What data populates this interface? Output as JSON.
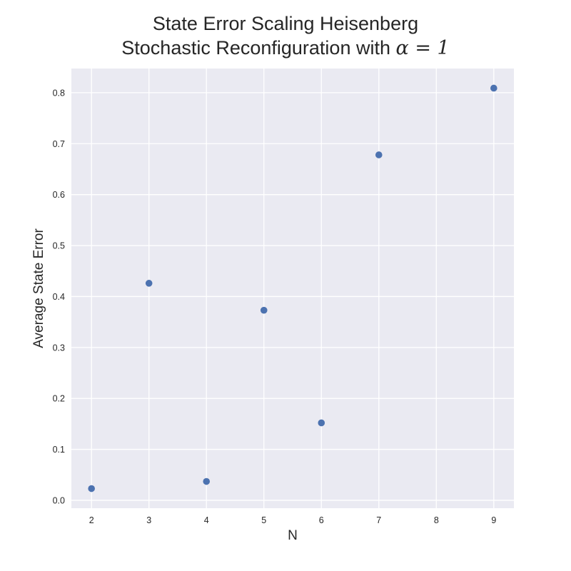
{
  "chart_data": {
    "type": "scatter",
    "title_lines": [
      "State Error Scaling Heisenberg",
      "Stochastic Reconfiguration with"
    ],
    "title_math": "α = 1",
    "xlabel": "N",
    "ylabel": "Average State Error",
    "x": [
      2,
      3,
      4,
      5,
      6,
      7,
      9
    ],
    "y": [
      0.023,
      0.426,
      0.037,
      0.373,
      0.152,
      0.678,
      0.809
    ],
    "xticks": [
      2,
      3,
      4,
      5,
      6,
      7,
      8,
      9
    ],
    "yticks": [
      0.0,
      0.1,
      0.2,
      0.3,
      0.4,
      0.5,
      0.6,
      0.7,
      0.8
    ],
    "ytick_labels": [
      "0.0",
      "0.1",
      "0.2",
      "0.3",
      "0.4",
      "0.5",
      "0.6",
      "0.7",
      "0.8"
    ],
    "xlim": [
      1.65,
      9.35
    ],
    "ylim": [
      -0.0155,
      0.8475
    ],
    "grid": true,
    "marker_color": "#4c72b0",
    "background_color": "#eaeaf2",
    "grid_color": "#ffffff"
  }
}
